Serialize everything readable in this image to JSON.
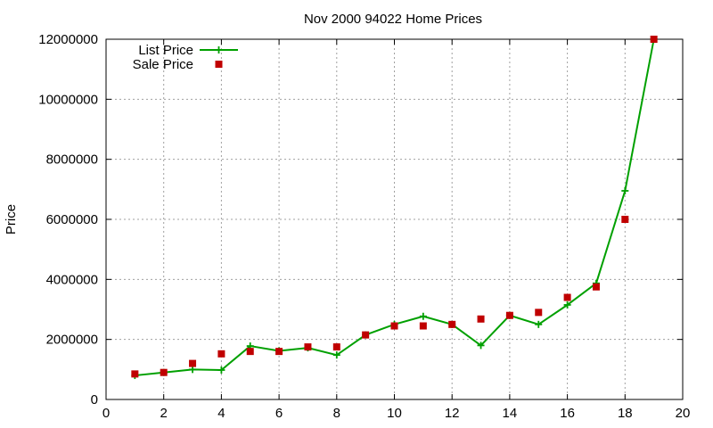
{
  "chart_data": {
    "type": "line",
    "title": "Nov 2000 94022 Home Prices",
    "xlabel": "",
    "ylabel": "Price",
    "xlim": [
      0,
      20
    ],
    "ylim": [
      0,
      12000000
    ],
    "xticks": [
      0,
      2,
      4,
      6,
      8,
      10,
      12,
      14,
      16,
      18,
      20
    ],
    "yticks": [
      0,
      2000000,
      4000000,
      6000000,
      8000000,
      10000000,
      12000000
    ],
    "grid": true,
    "legend_position": "top-left",
    "series": [
      {
        "name": "List Price",
        "style": "line-with-plus-markers",
        "color": "#00a000",
        "x": [
          1,
          2,
          3,
          4,
          5,
          6,
          7,
          8,
          9,
          10,
          11,
          12,
          13,
          14,
          15,
          16,
          17,
          18,
          19
        ],
        "y": [
          800000,
          900000,
          1000000,
          980000,
          1780000,
          1620000,
          1720000,
          1480000,
          2150000,
          2500000,
          2770000,
          2500000,
          1800000,
          2800000,
          2500000,
          3150000,
          3870000,
          6950000,
          12000000
        ]
      },
      {
        "name": "Sale Price",
        "style": "square-markers",
        "color": "#c00000",
        "x": [
          1,
          2,
          3,
          4,
          5,
          6,
          7,
          8,
          9,
          10,
          11,
          12,
          13,
          14,
          15,
          16,
          17,
          18,
          19
        ],
        "y": [
          850000,
          900000,
          1200000,
          1520000,
          1600000,
          1600000,
          1750000,
          1750000,
          2150000,
          2450000,
          2450000,
          2500000,
          2680000,
          2800000,
          2900000,
          3400000,
          3750000,
          6000000,
          12000000
        ]
      }
    ]
  }
}
